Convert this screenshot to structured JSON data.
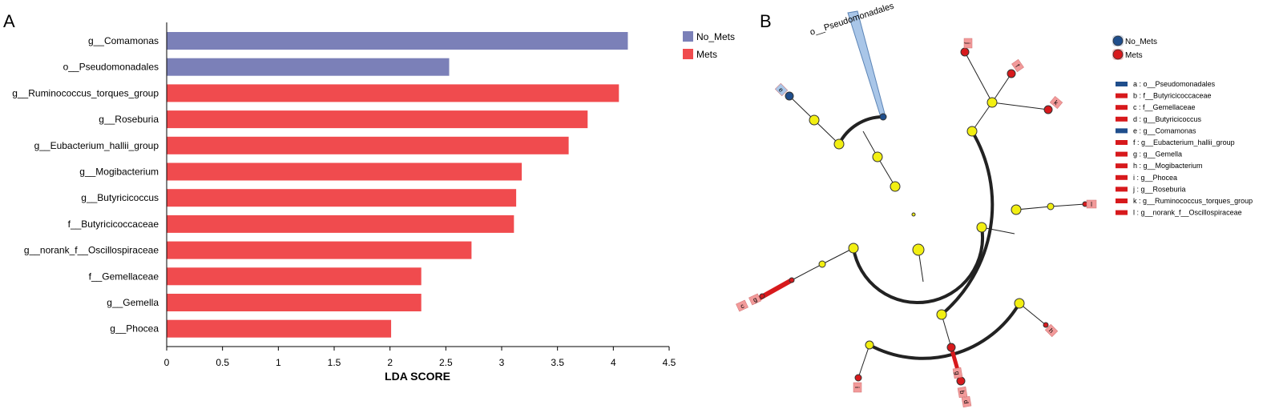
{
  "panels": [
    "A",
    "B"
  ],
  "chart_data": [
    {
      "type": "bar",
      "orientation": "horizontal",
      "categories": [
        "g__Comamonas",
        "o__Pseudomonadales",
        "g__Ruminococcus_torques_group",
        "g__Roseburia",
        "g__Eubacterium_hallii_group",
        "g__Mogibacterium",
        "g__Butyricicoccus",
        "f__Butyricicoccaceae",
        "g__norank_f__Oscillospiraceae",
        "f__Gemellaceae",
        "g__Gemella",
        "g__Phocea"
      ],
      "values": [
        4.13,
        2.53,
        4.05,
        3.77,
        3.6,
        3.18,
        3.13,
        3.11,
        2.73,
        2.28,
        2.28,
        2.01
      ],
      "groups": [
        "No_Mets",
        "No_Mets",
        "Mets",
        "Mets",
        "Mets",
        "Mets",
        "Mets",
        "Mets",
        "Mets",
        "Mets",
        "Mets",
        "Mets"
      ],
      "legend": [
        {
          "name": "No_Mets",
          "color": "#7b80b8"
        },
        {
          "name": "Mets",
          "color": "#f04b4e"
        }
      ],
      "xlabel": "LDA SCORE",
      "xlim": [
        0,
        4.5
      ],
      "xticks": [
        "0",
        "0.5",
        "1",
        "1.5",
        "2",
        "2.5",
        "3",
        "3.5",
        "4",
        "4.5"
      ]
    },
    {
      "type": "cladogram",
      "top_label": "o__Pseudomonadales",
      "legend": [
        {
          "name": "No_Mets",
          "color": "#1f4e8c"
        },
        {
          "name": "Mets",
          "color": "#d7191c"
        }
      ],
      "key": [
        {
          "text": "a : o__Pseudomonadales",
          "color": "#1f4e8c"
        },
        {
          "text": "b : f__Butyricicoccaceae",
          "color": "#d7191c"
        },
        {
          "text": "c : f__Gemellaceae",
          "color": "#d7191c"
        },
        {
          "text": "d : g__Butyricicoccus",
          "color": "#d7191c"
        },
        {
          "text": "e : g__Comamonas",
          "color": "#1f4e8c"
        },
        {
          "text": "f : g__Eubacterium_hallii_group",
          "color": "#d7191c"
        },
        {
          "text": "g : g__Gemella",
          "color": "#d7191c"
        },
        {
          "text": "h : g__Mogibacterium",
          "color": "#d7191c"
        },
        {
          "text": "i : g__Phocea",
          "color": "#d7191c"
        },
        {
          "text": "j : g__Roseburia",
          "color": "#d7191c"
        },
        {
          "text": "k : g__Ruminococcus_torques_group",
          "color": "#d7191c"
        },
        {
          "text": "l : g__norank_f__Oscillospiraceae",
          "color": "#d7191c"
        }
      ],
      "marker_labels": [
        "j",
        "f",
        "k",
        "e",
        "l",
        "c",
        "g",
        "i",
        "h",
        "b",
        "d",
        "g"
      ]
    }
  ]
}
